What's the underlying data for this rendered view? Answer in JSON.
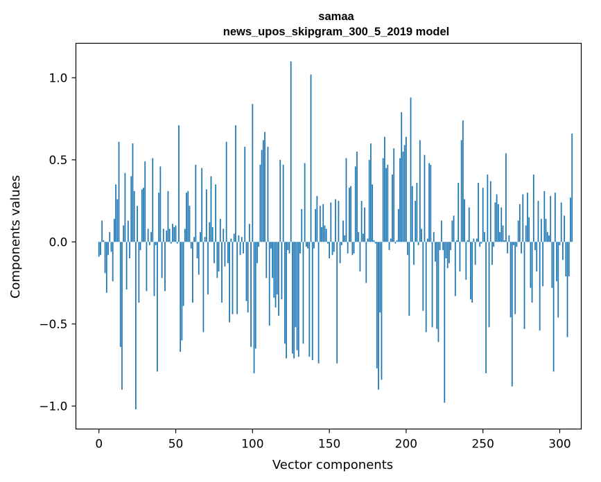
{
  "chart_data": {
    "type": "bar",
    "title_line1": "samaa",
    "title_line2": "news_upos_skipgram_300_5_2019 model",
    "xlabel": "Vector components",
    "ylabel": "Components values",
    "xlim": [
      -15,
      314
    ],
    "ylim": [
      -1.14,
      1.21
    ],
    "xticks": [
      0,
      50,
      100,
      150,
      200,
      250,
      300
    ],
    "xtick_labels": [
      "0",
      "50",
      "100",
      "150",
      "200",
      "250",
      "300"
    ],
    "yticks": [
      -1.0,
      -0.5,
      0.0,
      0.5,
      1.0
    ],
    "ytick_labels": [
      "−1.0",
      "−0.5",
      "0.0",
      "0.5",
      "1.0"
    ],
    "bar_color": "#1f77b4",
    "grid": false,
    "legend": "none",
    "values": [
      -0.09,
      -0.08,
      0.13,
      0.01,
      -0.19,
      -0.31,
      -0.08,
      0.06,
      -0.06,
      -0.24,
      0.14,
      0.35,
      0.26,
      0.61,
      -0.64,
      -0.9,
      0.1,
      0.42,
      -0.29,
      0.13,
      -0.1,
      0.4,
      0.6,
      0.31,
      -1.02,
      0.22,
      -0.37,
      -0.05,
      0.32,
      0.33,
      0.49,
      -0.3,
      0.08,
      -0.02,
      0.06,
      0.51,
      -0.33,
      -0.02,
      -0.79,
      0.3,
      0.46,
      -0.22,
      0.08,
      -0.3,
      0.07,
      0.31,
      0.08,
      -0.01,
      0.11,
      0.09,
      0.1,
      -0.01,
      0.71,
      -0.67,
      -0.6,
      -0.39,
      0.08,
      0.3,
      0.31,
      0.22,
      -0.04,
      -0.37,
      0.03,
      0.47,
      -0.1,
      -0.2,
      0.06,
      0.45,
      -0.55,
      0.03,
      0.32,
      -0.32,
      0.12,
      0.4,
      0.09,
      -0.13,
      0.35,
      -0.22,
      -0.18,
      0.14,
      -0.37,
      0.08,
      -0.15,
      0.61,
      -0.13,
      -0.49,
      0.02,
      -0.44,
      0.05,
      0.71,
      -0.44,
      0.04,
      -0.08,
      0.03,
      -0.07,
      0.58,
      -0.36,
      -0.43,
      0.11,
      -0.64,
      0.84,
      -0.8,
      -0.65,
      -0.13,
      -0.03,
      0.47,
      0.56,
      0.62,
      0.67,
      -0.22,
      0.58,
      -0.51,
      -0.04,
      -0.22,
      -0.34,
      -0.4,
      -0.32,
      -0.45,
      0.5,
      -0.35,
      0.47,
      -0.62,
      -0.71,
      -0.05,
      -0.07,
      1.1,
      -0.68,
      -0.71,
      -0.52,
      -0.66,
      -0.7,
      -0.07,
      0.2,
      -0.62,
      0.48,
      -0.03,
      -0.04,
      -0.7,
      1.02,
      -0.72,
      -0.04,
      0.2,
      0.28,
      -0.74,
      0.22,
      0.09,
      0.23,
      0.1,
      0.08,
      -0.01,
      -0.1,
      0.24,
      -0.08,
      -0.06,
      0.26,
      -0.74,
      0.25,
      -0.13,
      -0.02,
      0.13,
      0.04,
      0.51,
      -0.07,
      0.33,
      0.34,
      -0.08,
      -0.07,
      0.46,
      0.55,
      0.06,
      -0.18,
      0.25,
      0.05,
      0.21,
      -0.25,
      0.02,
      0.5,
      0.6,
      0.35,
      0.01,
      -0.01,
      -0.77,
      -0.9,
      -0.43,
      -0.84,
      0.51,
      0.64,
      0.45,
      0.47,
      -0.05,
      0.02,
      0.41,
      0.57,
      -0.01,
      0.01,
      0.2,
      0.51,
      0.79,
      0.55,
      0.59,
      0.64,
      -0.08,
      -0.45,
      0.88,
      0.34,
      -0.14,
      0.25,
      0.36,
      -0.02,
      0.62,
      0.08,
      -0.42,
      0.53,
      -0.55,
      0.02,
      0.48,
      0.47,
      -0.52,
      0.06,
      -0.12,
      -0.53,
      -0.61,
      -0.05,
      0.13,
      -0.05,
      -0.98,
      -0.1,
      -0.16,
      -0.13,
      -0.05,
      0.13,
      0.16,
      -0.33,
      0.01,
      0.36,
      -0.18,
      0.62,
      0.74,
      0.26,
      -0.23,
      0.01,
      0.21,
      -0.35,
      -0.37,
      0.02,
      -0.14,
      0.02,
      0.36,
      -0.03,
      -0.01,
      0.33,
      0.06,
      -0.8,
      0.41,
      -0.52,
      0.37,
      -0.14,
      -0.03,
      0.24,
      0.29,
      0.23,
      0.06,
      0.21,
      0.1,
      0.01,
      0.54,
      -0.07,
      0.04,
      -0.46,
      -0.88,
      -0.02,
      -0.44,
      -0.03,
      0.13,
      0.23,
      -0.07,
      0.29,
      -0.53,
      0.1,
      0.3,
      0.15,
      -0.28,
      -0.37,
      0.41,
      -0.05,
      -0.18,
      0.25,
      -0.54,
      0.14,
      -0.27,
      0.31,
      0.14,
      0.06,
      0.04,
      0.28,
      -0.28,
      -0.79,
      0.3,
      -0.24,
      -0.46,
      -0.02,
      0.24,
      -0.11,
      0.16,
      -0.21,
      -0.58,
      -0.21,
      0.27,
      0.66
    ]
  }
}
